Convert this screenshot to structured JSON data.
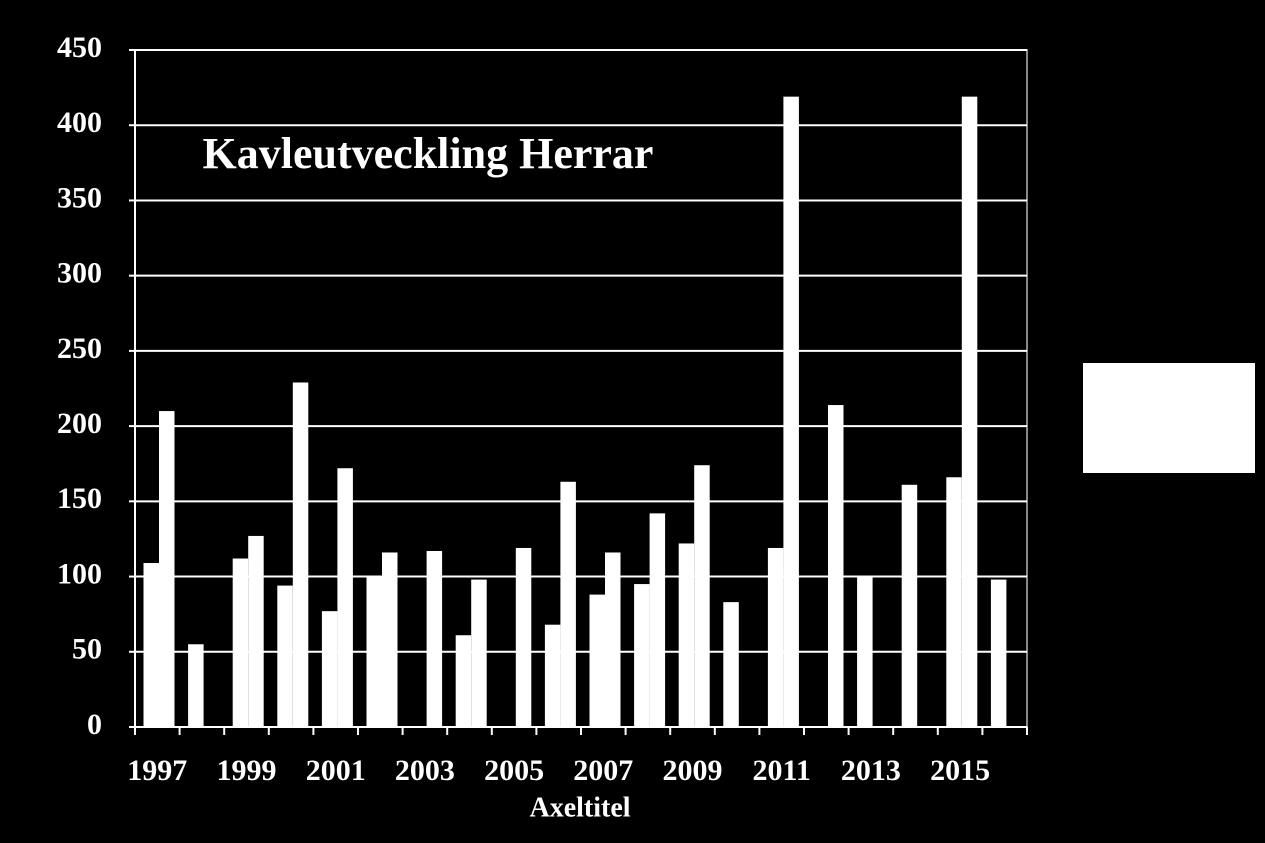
{
  "chart_data": {
    "type": "bar",
    "title": "Kavleutveckling Herrar",
    "x_label": "Axeltitel",
    "categories": [
      "1997",
      null,
      "1999",
      null,
      "2001",
      null,
      "2003",
      null,
      "2005",
      null,
      "2007",
      null,
      "2009",
      null,
      "2011",
      null,
      "2013",
      null,
      "2015",
      null
    ],
    "series": [
      {
        "color": "#ffffff",
        "values": [
          109,
          55,
          112,
          94,
          77,
          100,
          null,
          61,
          null,
          68,
          88,
          95,
          122,
          83,
          119,
          null,
          100,
          161,
          166,
          98
        ]
      },
      {
        "color": "#ffffff",
        "values": [
          210,
          null,
          127,
          229,
          172,
          116,
          117,
          98,
          119,
          163,
          116,
          142,
          174,
          null,
          419,
          214,
          null,
          null,
          419,
          null
        ]
      }
    ],
    "ylim": [
      0,
      450
    ],
    "yticks": [
      0,
      50,
      100,
      150,
      200,
      250,
      300,
      350,
      400,
      450
    ],
    "grid": true
  }
}
